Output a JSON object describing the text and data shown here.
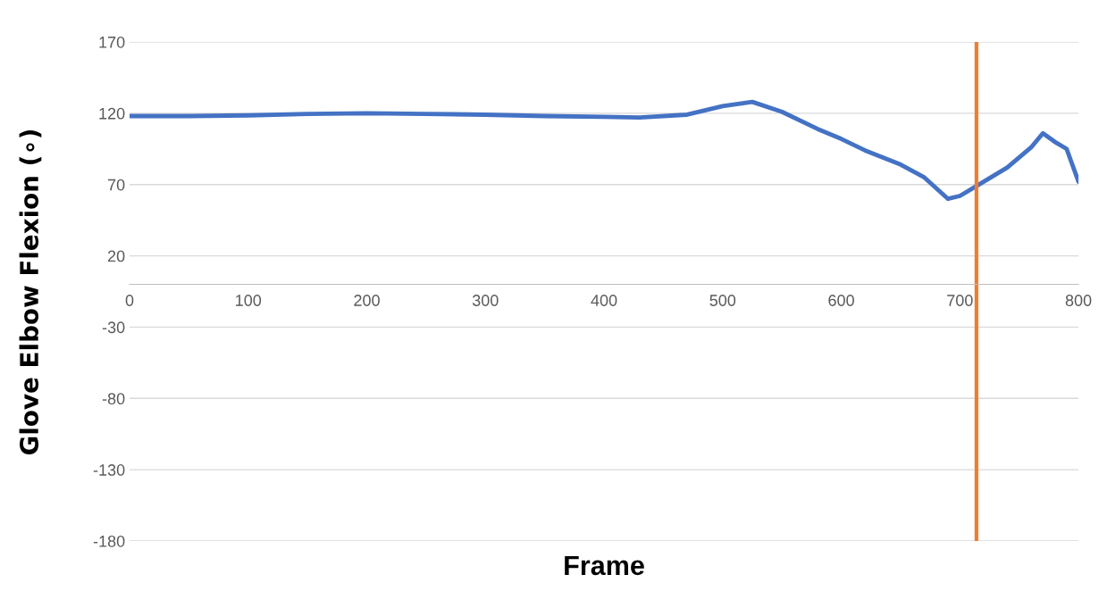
{
  "chart_data": {
    "type": "line",
    "xlabel": "Frame",
    "ylabel": "Glove Elbow Flexion (∘)",
    "x": [
      0,
      50,
      100,
      150,
      200,
      250,
      300,
      350,
      400,
      430,
      470,
      500,
      525,
      550,
      580,
      600,
      620,
      650,
      670,
      690,
      700,
      714,
      740,
      760,
      770,
      780,
      790,
      800
    ],
    "series": [
      {
        "color": "#4472c4",
        "values": [
          118,
          118,
          118.5,
          119.5,
          120,
          119.5,
          119,
          118,
          117.5,
          117,
          119,
          125,
          128,
          121,
          109,
          102,
          94,
          84,
          75,
          60,
          62,
          69,
          82,
          96,
          106,
          100,
          95,
          72
        ]
      }
    ],
    "xlim": [
      0,
      800
    ],
    "xticks": [
      0,
      100,
      200,
      300,
      400,
      500,
      600,
      700,
      800
    ],
    "ylim": [
      -180,
      170
    ],
    "yticks": [
      -180,
      -130,
      -80,
      -30,
      20,
      70,
      120,
      170
    ],
    "grid": "y",
    "marker": "none",
    "line_style": "solid",
    "ref_lines": [
      {
        "axis": "x",
        "value": 714,
        "color": "#ed7d31"
      }
    ]
  }
}
